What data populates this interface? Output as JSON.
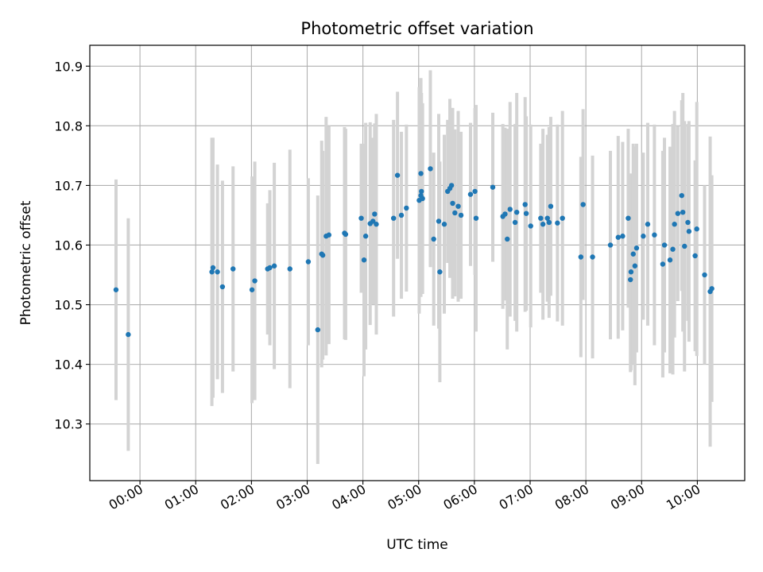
{
  "chart_data": {
    "type": "scatter",
    "title": "Photometric offset variation",
    "xlabel": "UTC time",
    "ylabel": "Photometric offset",
    "xlim": [
      -0.9,
      10.85
    ],
    "ylim": [
      10.205,
      10.935
    ],
    "grid": true,
    "x_ticks": [
      0,
      1,
      2,
      3,
      4,
      5,
      6,
      7,
      8,
      9,
      10
    ],
    "x_tick_labels": [
      "00:00",
      "01:00",
      "02:00",
      "03:00",
      "04:00",
      "05:00",
      "06:00",
      "07:00",
      "08:00",
      "09:00",
      "10:00"
    ],
    "y_ticks": [
      10.3,
      10.4,
      10.5,
      10.6,
      10.7,
      10.8,
      10.9
    ],
    "y_tick_labels": [
      "10.3",
      "10.4",
      "10.5",
      "10.6",
      "10.7",
      "10.8",
      "10.9"
    ],
    "colors": {
      "point": "#1f77b4",
      "errorbar": "#d3d3d3",
      "grid": "#b0b0b0"
    },
    "series": [
      {
        "name": "Photometric offset",
        "points": [
          [
            -0.43,
            10.525,
            0.185
          ],
          [
            -0.21,
            10.45,
            0.195
          ],
          [
            1.29,
            10.555,
            0.225
          ],
          [
            1.31,
            10.562,
            0.218
          ],
          [
            1.39,
            10.555,
            0.18
          ],
          [
            1.48,
            10.53,
            0.178
          ],
          [
            1.67,
            10.56,
            0.172
          ],
          [
            2.01,
            10.525,
            0.19
          ],
          [
            2.06,
            10.54,
            0.2
          ],
          [
            2.29,
            10.56,
            0.11
          ],
          [
            2.33,
            10.562,
            0.13
          ],
          [
            2.41,
            10.565,
            0.173
          ],
          [
            2.69,
            10.56,
            0.2
          ],
          [
            3.02,
            10.572,
            0.14
          ],
          [
            3.19,
            10.458,
            0.225
          ],
          [
            3.26,
            10.585,
            0.19
          ],
          [
            3.28,
            10.583,
            0.175
          ],
          [
            3.34,
            10.615,
            0.2
          ],
          [
            3.39,
            10.617,
            0.183
          ],
          [
            3.67,
            10.62,
            0.178
          ],
          [
            3.69,
            10.618,
            0.177
          ],
          [
            3.97,
            10.645,
            0.125
          ],
          [
            4.02,
            10.575,
            0.195
          ],
          [
            4.05,
            10.615,
            0.19
          ],
          [
            4.13,
            10.636,
            0.17
          ],
          [
            4.18,
            10.64,
            0.14
          ],
          [
            4.21,
            10.652,
            0.152
          ],
          [
            4.24,
            10.635,
            0.185
          ],
          [
            4.55,
            10.645,
            0.165
          ],
          [
            4.62,
            10.717,
            0.14
          ],
          [
            4.69,
            10.65,
            0.14
          ],
          [
            4.78,
            10.662,
            0.14
          ],
          [
            5.01,
            10.675,
            0.19
          ],
          [
            5.04,
            10.683,
            0.17
          ],
          [
            5.04,
            10.72,
            0.16
          ],
          [
            5.05,
            10.69,
            0.165
          ],
          [
            5.07,
            10.678,
            0.16
          ],
          [
            5.21,
            10.728,
            0.165
          ],
          [
            5.27,
            10.61,
            0.145
          ],
          [
            5.36,
            10.64,
            0.18
          ],
          [
            5.38,
            10.555,
            0.185
          ],
          [
            5.46,
            10.635,
            0.15
          ],
          [
            5.52,
            10.69,
            0.12
          ],
          [
            5.56,
            10.695,
            0.15
          ],
          [
            5.59,
            10.7,
            0.13
          ],
          [
            5.61,
            10.67,
            0.16
          ],
          [
            5.65,
            10.654,
            0.14
          ],
          [
            5.71,
            10.665,
            0.16
          ],
          [
            5.76,
            10.65,
            0.14
          ],
          [
            5.93,
            10.685,
            0.12
          ],
          [
            6.01,
            10.69,
            0.14
          ],
          [
            6.03,
            10.645,
            0.19
          ],
          [
            6.33,
            10.697,
            0.125
          ],
          [
            6.51,
            10.648,
            0.155
          ],
          [
            6.55,
            10.652,
            0.145
          ],
          [
            6.59,
            10.61,
            0.185
          ],
          [
            6.64,
            10.66,
            0.18
          ],
          [
            6.73,
            10.638,
            0.165
          ],
          [
            6.76,
            10.655,
            0.2
          ],
          [
            6.91,
            10.668,
            0.18
          ],
          [
            6.93,
            10.653,
            0.163
          ],
          [
            7.01,
            10.632,
            0.17
          ],
          [
            7.19,
            10.645,
            0.125
          ],
          [
            7.23,
            10.635,
            0.16
          ],
          [
            7.31,
            10.645,
            0.14
          ],
          [
            7.34,
            10.638,
            0.16
          ],
          [
            7.37,
            10.665,
            0.15
          ],
          [
            7.49,
            10.637,
            0.165
          ],
          [
            7.58,
            10.645,
            0.18
          ],
          [
            7.91,
            10.58,
            0.168
          ],
          [
            7.95,
            10.668,
            0.16
          ],
          [
            8.12,
            10.58,
            0.17
          ],
          [
            8.44,
            10.6,
            0.158
          ],
          [
            8.58,
            10.613,
            0.17
          ],
          [
            8.66,
            10.615,
            0.158
          ],
          [
            8.76,
            10.645,
            0.15
          ],
          [
            8.8,
            10.542,
            0.155
          ],
          [
            8.81,
            10.555,
            0.165
          ],
          [
            8.85,
            10.585,
            0.185
          ],
          [
            8.88,
            10.565,
            0.2
          ],
          [
            8.91,
            10.595,
            0.175
          ],
          [
            9.03,
            10.615,
            0.14
          ],
          [
            9.11,
            10.635,
            0.17
          ],
          [
            9.23,
            10.617,
            0.185
          ],
          [
            9.38,
            10.568,
            0.19
          ],
          [
            9.41,
            10.6,
            0.18
          ],
          [
            9.51,
            10.575,
            0.19
          ],
          [
            9.56,
            10.593,
            0.21
          ],
          [
            9.59,
            10.635,
            0.19
          ],
          [
            9.65,
            10.653,
            0.147
          ],
          [
            9.72,
            10.683,
            0.16
          ],
          [
            9.74,
            10.655,
            0.2
          ],
          [
            9.77,
            10.598,
            0.21
          ],
          [
            9.83,
            10.638,
            0.165
          ],
          [
            9.85,
            10.623,
            0.185
          ],
          [
            9.96,
            10.582,
            0.16
          ],
          [
            9.99,
            10.627,
            0.213
          ],
          [
            10.13,
            10.55,
            0.15
          ],
          [
            10.23,
            10.522,
            0.26
          ],
          [
            10.26,
            10.527,
            0.19
          ]
        ]
      }
    ]
  }
}
